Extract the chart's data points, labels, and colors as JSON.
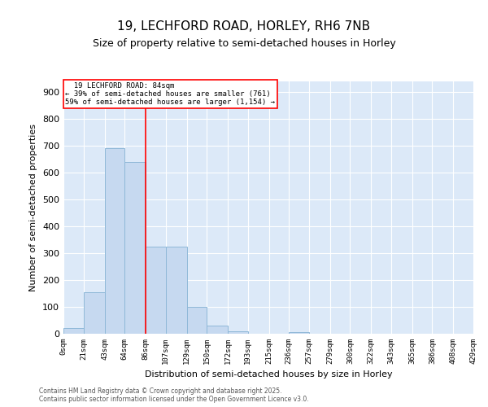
{
  "title": "19, LECHFORD ROAD, HORLEY, RH6 7NB",
  "subtitle": "Size of property relative to semi-detached houses in Horley",
  "xlabel": "Distribution of semi-detached houses by size in Horley",
  "ylabel": "Number of semi-detached properties",
  "property_size": 84,
  "property_label": "19 LECHFORD ROAD: 84sqm",
  "pct_smaller": 39,
  "n_smaller": 761,
  "pct_larger": 59,
  "n_larger": 1154,
  "bin_labels": [
    "0sqm",
    "21sqm",
    "43sqm",
    "64sqm",
    "86sqm",
    "107sqm",
    "129sqm",
    "150sqm",
    "172sqm",
    "193sqm",
    "215sqm",
    "236sqm",
    "257sqm",
    "279sqm",
    "300sqm",
    "322sqm",
    "343sqm",
    "365sqm",
    "386sqm",
    "408sqm",
    "429sqm"
  ],
  "bin_edges": [
    0,
    21,
    43,
    64,
    86,
    107,
    129,
    150,
    172,
    193,
    215,
    236,
    257,
    279,
    300,
    322,
    343,
    365,
    386,
    408,
    429
  ],
  "bar_heights": [
    20,
    155,
    690,
    640,
    325,
    325,
    100,
    30,
    10,
    0,
    0,
    5,
    0,
    0,
    0,
    0,
    0,
    0,
    0,
    0
  ],
  "bar_color": "#c6d9f0",
  "bar_edgecolor": "#8fb8d8",
  "vline_color": "red",
  "vline_x": 86,
  "background_color": "#dce9f8",
  "grid_color": "white",
  "ylim": [
    0,
    940
  ],
  "yticks": [
    0,
    100,
    200,
    300,
    400,
    500,
    600,
    700,
    800,
    900
  ],
  "footer_line1": "Contains HM Land Registry data © Crown copyright and database right 2025.",
  "footer_line2": "Contains public sector information licensed under the Open Government Licence v3.0."
}
